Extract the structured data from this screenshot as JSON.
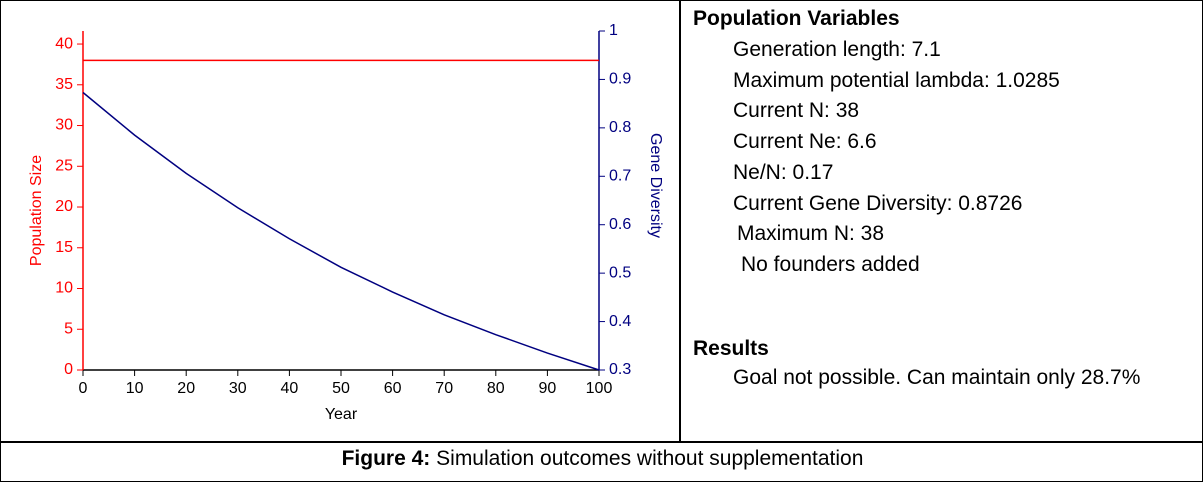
{
  "chart_data": {
    "type": "line",
    "xlabel": "Year",
    "ylabel": "Population Size",
    "y2label": "Gene Diversity",
    "x": [
      0,
      10,
      20,
      30,
      40,
      50,
      60,
      70,
      80,
      90,
      100
    ],
    "series": [
      {
        "color": "#ff0000",
        "values": [
          38,
          38,
          38,
          38,
          38,
          38,
          38,
          38,
          38,
          38,
          38
        ]
      },
      {
        "color": "#000080",
        "axis": "y2",
        "values": [
          0.873,
          0.785,
          0.706,
          0.635,
          0.571,
          0.512,
          0.461,
          0.414,
          0.373,
          0.335,
          0.3
        ]
      }
    ],
    "xlim": [
      0,
      100
    ],
    "xticks": [
      0,
      10,
      20,
      30,
      40,
      50,
      60,
      70,
      80,
      90,
      100
    ],
    "ylim": [
      0,
      41.6
    ],
    "yticks": [
      0,
      5,
      10,
      15,
      20,
      25,
      30,
      35,
      40
    ],
    "y2lim": [
      0.3,
      1
    ],
    "y2ticks": [
      0.3,
      0.4,
      0.5,
      0.6,
      0.7,
      0.8,
      0.9,
      1
    ],
    "ycolor": "#ff0000",
    "y2color": "#000080",
    "grid": false
  },
  "panel": {
    "heading": "Population Variables",
    "lines": [
      "Generation length: 7.1",
      "Maximum potential lambda: 1.0285",
      "Current N: 38",
      "Current Ne: 6.6",
      "Ne/N: 0.17",
      "Current Gene Diversity: 0.8726",
      "Maximum N: 38",
      "No founders added"
    ],
    "results_heading": "Results",
    "results": "Goal not possible. Can maintain only 28.7%"
  },
  "caption": {
    "label": "Figure 4:",
    "text": "Simulation outcomes without supplementation"
  }
}
